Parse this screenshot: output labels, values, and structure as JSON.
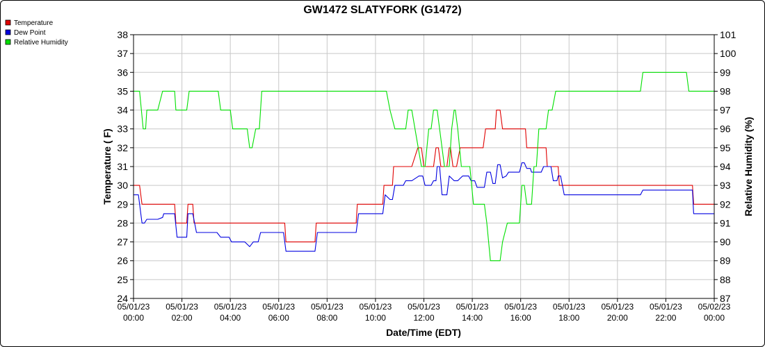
{
  "chart_data": {
    "type": "line",
    "title": "GW1472 SLATYFORK (G1472)",
    "xlabel": "Date/Time (EDT)",
    "ylabel_left": "Temperature ( F)",
    "ylabel_right": "Relative Humidity (%)",
    "ylim_left": [
      24,
      38
    ],
    "ylim_right": [
      87,
      101
    ],
    "xlim_hours": [
      0,
      24
    ],
    "grid": true,
    "legend_position": "top-left",
    "x_ticks": [
      {
        "h": 0,
        "date": "05/01/23",
        "time": "00:00"
      },
      {
        "h": 2,
        "date": "05/01/23",
        "time": "02:00"
      },
      {
        "h": 4,
        "date": "05/01/23",
        "time": "04:00"
      },
      {
        "h": 6,
        "date": "05/01/23",
        "time": "06:00"
      },
      {
        "h": 8,
        "date": "05/01/23",
        "time": "08:00"
      },
      {
        "h": 10,
        "date": "05/01/23",
        "time": "10:00"
      },
      {
        "h": 12,
        "date": "05/01/23",
        "time": "12:00"
      },
      {
        "h": 14,
        "date": "05/01/23",
        "time": "14:00"
      },
      {
        "h": 16,
        "date": "05/01/23",
        "time": "16:00"
      },
      {
        "h": 18,
        "date": "05/01/23",
        "time": "18:00"
      },
      {
        "h": 20,
        "date": "05/01/23",
        "time": "20:00"
      },
      {
        "h": 22,
        "date": "05/01/23",
        "time": "22:00"
      },
      {
        "h": 24,
        "date": "05/02/23",
        "time": "00:00"
      }
    ],
    "left_ticks": [
      24,
      25,
      26,
      27,
      28,
      29,
      30,
      31,
      32,
      33,
      34,
      35,
      36,
      37,
      38
    ],
    "right_ticks": [
      87,
      88,
      89,
      90,
      91,
      92,
      93,
      94,
      95,
      96,
      97,
      98,
      99,
      100,
      101
    ],
    "series": [
      {
        "name": "Temperature",
        "color": "#e00000",
        "axis": "left",
        "points": [
          [
            0,
            30
          ],
          [
            0.25,
            30
          ],
          [
            0.35,
            29
          ],
          [
            1.7,
            29
          ],
          [
            1.75,
            28
          ],
          [
            2.2,
            28
          ],
          [
            2.25,
            29
          ],
          [
            2.45,
            29
          ],
          [
            2.5,
            28
          ],
          [
            6.25,
            28
          ],
          [
            6.3,
            27
          ],
          [
            7.5,
            27
          ],
          [
            7.55,
            28
          ],
          [
            9.2,
            28
          ],
          [
            9.25,
            29
          ],
          [
            10.3,
            29
          ],
          [
            10.35,
            30
          ],
          [
            10.7,
            30
          ],
          [
            10.75,
            31
          ],
          [
            11.5,
            31
          ],
          [
            11.75,
            32
          ],
          [
            11.9,
            32
          ],
          [
            12,
            31
          ],
          [
            12.4,
            31
          ],
          [
            12.5,
            32
          ],
          [
            12.6,
            32
          ],
          [
            12.7,
            31
          ],
          [
            12.95,
            31
          ],
          [
            13.05,
            32
          ],
          [
            13.1,
            32
          ],
          [
            13.2,
            31
          ],
          [
            13.35,
            31
          ],
          [
            13.5,
            32
          ],
          [
            14.45,
            32
          ],
          [
            14.55,
            33
          ],
          [
            14.95,
            33
          ],
          [
            15,
            34
          ],
          [
            15.15,
            34
          ],
          [
            15.25,
            33
          ],
          [
            16.2,
            33
          ],
          [
            16.25,
            32
          ],
          [
            17.05,
            32
          ],
          [
            17.1,
            31
          ],
          [
            17.55,
            31
          ],
          [
            17.6,
            30
          ],
          [
            23.1,
            30
          ],
          [
            23.15,
            29
          ],
          [
            24,
            29
          ]
        ]
      },
      {
        "name": "Dew Point",
        "color": "#0000e0",
        "axis": "left",
        "points": [
          [
            0,
            29.5
          ],
          [
            0.2,
            29.5
          ],
          [
            0.35,
            28
          ],
          [
            0.45,
            28
          ],
          [
            0.55,
            28.2
          ],
          [
            1,
            28.2
          ],
          [
            1.2,
            28.3
          ],
          [
            1.25,
            28.5
          ],
          [
            1.7,
            28.5
          ],
          [
            1.8,
            27.25
          ],
          [
            2.2,
            27.25
          ],
          [
            2.25,
            28.5
          ],
          [
            2.45,
            28.5
          ],
          [
            2.6,
            27.5
          ],
          [
            3.45,
            27.5
          ],
          [
            3.6,
            27.25
          ],
          [
            3.95,
            27.25
          ],
          [
            4.05,
            27
          ],
          [
            4.6,
            27
          ],
          [
            4.8,
            26.75
          ],
          [
            4.95,
            27
          ],
          [
            5.15,
            27
          ],
          [
            5.25,
            27.5
          ],
          [
            6.2,
            27.5
          ],
          [
            6.3,
            26.5
          ],
          [
            7.5,
            26.5
          ],
          [
            7.6,
            27.5
          ],
          [
            9.2,
            27.5
          ],
          [
            9.3,
            28.5
          ],
          [
            10.3,
            28.5
          ],
          [
            10.4,
            29.5
          ],
          [
            10.6,
            29.25
          ],
          [
            10.7,
            29.25
          ],
          [
            10.8,
            30
          ],
          [
            11.15,
            30
          ],
          [
            11.25,
            30.25
          ],
          [
            11.5,
            30.25
          ],
          [
            11.8,
            30.5
          ],
          [
            11.95,
            30.5
          ],
          [
            12.05,
            30
          ],
          [
            12.3,
            30
          ],
          [
            12.4,
            30.25
          ],
          [
            12.5,
            30.25
          ],
          [
            12.55,
            31
          ],
          [
            12.65,
            31
          ],
          [
            12.75,
            29.5
          ],
          [
            12.95,
            29.5
          ],
          [
            13.05,
            30.5
          ],
          [
            13.25,
            30.25
          ],
          [
            13.4,
            30.25
          ],
          [
            13.6,
            30.5
          ],
          [
            13.85,
            30.5
          ],
          [
            13.95,
            30.25
          ],
          [
            14.1,
            30.25
          ],
          [
            14.2,
            29.9
          ],
          [
            14.5,
            29.9
          ],
          [
            14.6,
            30.7
          ],
          [
            14.75,
            30.7
          ],
          [
            14.85,
            30.1
          ],
          [
            14.95,
            30.1
          ],
          [
            15.05,
            31.1
          ],
          [
            15.15,
            31.1
          ],
          [
            15.25,
            30.4
          ],
          [
            15.4,
            30.5
          ],
          [
            15.5,
            30.7
          ],
          [
            15.95,
            30.7
          ],
          [
            16.05,
            31.2
          ],
          [
            16.15,
            31.2
          ],
          [
            16.25,
            30.9
          ],
          [
            16.4,
            30.9
          ],
          [
            16.45,
            30.7
          ],
          [
            16.85,
            30.7
          ],
          [
            16.95,
            31
          ],
          [
            17.25,
            31
          ],
          [
            17.35,
            30.25
          ],
          [
            17.5,
            30.25
          ],
          [
            17.55,
            30.5
          ],
          [
            17.65,
            30.5
          ],
          [
            17.8,
            29.5
          ],
          [
            20.95,
            29.5
          ],
          [
            21.05,
            29.75
          ],
          [
            23.1,
            29.75
          ],
          [
            23.15,
            28.5
          ],
          [
            24,
            28.5
          ]
        ]
      },
      {
        "name": "Relative Humidity",
        "color": "#00e000",
        "axis": "right",
        "points": [
          [
            0,
            98
          ],
          [
            0.25,
            98
          ],
          [
            0.4,
            96
          ],
          [
            0.5,
            96
          ],
          [
            0.55,
            97
          ],
          [
            1,
            97
          ],
          [
            1.2,
            98
          ],
          [
            1.7,
            98
          ],
          [
            1.75,
            97
          ],
          [
            2.2,
            97
          ],
          [
            2.3,
            98
          ],
          [
            3.5,
            98
          ],
          [
            3.6,
            97
          ],
          [
            4,
            97
          ],
          [
            4.1,
            96
          ],
          [
            4.7,
            96
          ],
          [
            4.8,
            95
          ],
          [
            4.9,
            95
          ],
          [
            5.05,
            96
          ],
          [
            5.2,
            96
          ],
          [
            5.3,
            98
          ],
          [
            10.45,
            98
          ],
          [
            10.6,
            97
          ],
          [
            10.8,
            96
          ],
          [
            11.25,
            96
          ],
          [
            11.35,
            97
          ],
          [
            11.5,
            97
          ],
          [
            11.9,
            94
          ],
          [
            12.05,
            94
          ],
          [
            12.2,
            96
          ],
          [
            12.3,
            96
          ],
          [
            12.4,
            97
          ],
          [
            12.55,
            97
          ],
          [
            12.65,
            96
          ],
          [
            12.85,
            94
          ],
          [
            13.05,
            94
          ],
          [
            13.15,
            96
          ],
          [
            13.25,
            97
          ],
          [
            13.3,
            97
          ],
          [
            13.4,
            96
          ],
          [
            13.55,
            94
          ],
          [
            13.9,
            94
          ],
          [
            14.05,
            92
          ],
          [
            14.5,
            92
          ],
          [
            14.6,
            91
          ],
          [
            14.75,
            89
          ],
          [
            15.15,
            89
          ],
          [
            15.25,
            90
          ],
          [
            15.45,
            91
          ],
          [
            15.95,
            91
          ],
          [
            16.05,
            93
          ],
          [
            16.15,
            93
          ],
          [
            16.25,
            92
          ],
          [
            16.45,
            92
          ],
          [
            16.55,
            94
          ],
          [
            16.65,
            94
          ],
          [
            16.75,
            96
          ],
          [
            17.05,
            96
          ],
          [
            17.15,
            97
          ],
          [
            17.3,
            97
          ],
          [
            17.45,
            98
          ],
          [
            20.95,
            98
          ],
          [
            21.05,
            99
          ],
          [
            22.85,
            99
          ],
          [
            22.95,
            98
          ],
          [
            24,
            98
          ]
        ]
      }
    ]
  }
}
